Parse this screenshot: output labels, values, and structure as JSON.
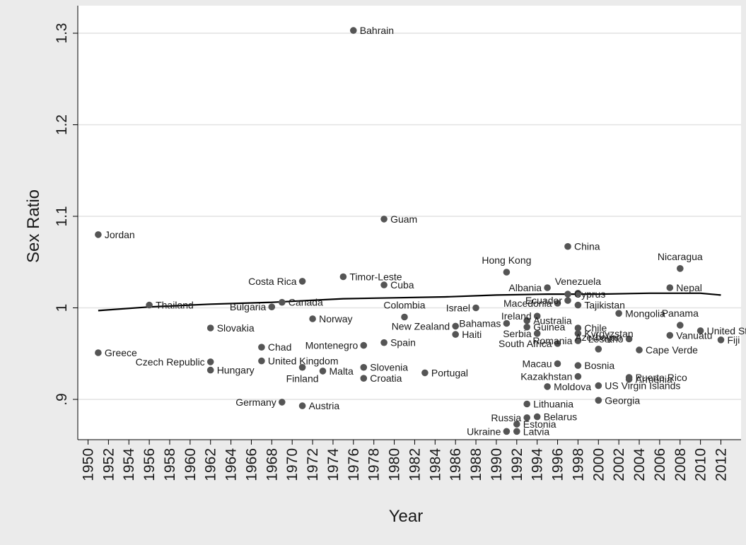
{
  "chart_data": {
    "type": "scatter",
    "title": "",
    "xlabel": "Year",
    "ylabel": "Sex Ratio",
    "xlim": [
      1949.5,
      2012.5
    ],
    "ylim": [
      0.85,
      1.31
    ],
    "x_ticks": [
      1950,
      1952,
      1954,
      1956,
      1958,
      1960,
      1962,
      1964,
      1966,
      1968,
      1970,
      1972,
      1974,
      1976,
      1978,
      1980,
      1982,
      1984,
      1986,
      1988,
      1990,
      1992,
      1994,
      1996,
      1998,
      2000,
      2002,
      2004,
      2006,
      2008,
      2010,
      2012
    ],
    "y_ticks": [
      {
        "value": 0.9,
        "label": ".9"
      },
      {
        "value": 1.0,
        "label": "1"
      },
      {
        "value": 1.1,
        "label": "1.1"
      },
      {
        "value": 1.2,
        "label": "1.2"
      },
      {
        "value": 1.3,
        "label": "1.3"
      }
    ],
    "grid": true,
    "legend": "none",
    "colors": {
      "background": "#ebebeb",
      "plot": "#ffffff",
      "point": "#555555",
      "line": "#000000",
      "grid": "#e2e2e2"
    },
    "points": [
      {
        "country": "Bahrain",
        "x": 1976,
        "y": 1.303
      },
      {
        "country": "Jordan",
        "x": 1951,
        "y": 1.08
      },
      {
        "country": "Guam",
        "x": 1979,
        "y": 1.097
      },
      {
        "country": "China",
        "x": 1997,
        "y": 1.067
      },
      {
        "country": "Nicaragua",
        "x": 2008,
        "y": 1.043
      },
      {
        "country": "Hong Kong",
        "x": 1991,
        "y": 1.039
      },
      {
        "country": "Timor-Leste",
        "x": 1975,
        "y": 1.034
      },
      {
        "country": "Costa Rica",
        "x": 1971,
        "y": 1.029
      },
      {
        "country": "Cuba",
        "x": 1979,
        "y": 1.025
      },
      {
        "country": "Albania",
        "x": 1995,
        "y": 1.022
      },
      {
        "country": "Nepal",
        "x": 2007,
        "y": 1.022
      },
      {
        "country": "Venezuela",
        "x": 1998,
        "y": 1.016
      },
      {
        "country": "Cyprus",
        "x": 1997,
        "y": 1.015
      },
      {
        "country": "Ecuador",
        "x": 1997,
        "y": 1.008
      },
      {
        "country": "Canada",
        "x": 1969,
        "y": 1.006
      },
      {
        "country": "Macedonia",
        "x": 1996,
        "y": 1.005
      },
      {
        "country": "Thailand",
        "x": 1956,
        "y": 1.003
      },
      {
        "country": "Tajikistan",
        "x": 1998,
        "y": 1.003
      },
      {
        "country": "Bulgaria",
        "x": 1968,
        "y": 1.001
      },
      {
        "country": "Israel",
        "x": 1988,
        "y": 1.0
      },
      {
        "country": "Mongolia",
        "x": 2002,
        "y": 0.994
      },
      {
        "country": "Ireland",
        "x": 1994,
        "y": 0.991
      },
      {
        "country": "Colombia",
        "x": 1981,
        "y": 0.99
      },
      {
        "country": "Australia",
        "x": 1993,
        "y": 0.986
      },
      {
        "country": "Norway",
        "x": 1972,
        "y": 0.988
      },
      {
        "country": "Bahamas",
        "x": 1991,
        "y": 0.983
      },
      {
        "country": "Panama",
        "x": 2008,
        "y": 0.981
      },
      {
        "country": "Guinea",
        "x": 1993,
        "y": 0.979
      },
      {
        "country": "Slovakia",
        "x": 1962,
        "y": 0.978
      },
      {
        "country": "New Zealand",
        "x": 1986,
        "y": 0.98
      },
      {
        "country": "Chile",
        "x": 1998,
        "y": 0.978
      },
      {
        "country": "United States",
        "x": 2010,
        "y": 0.975
      },
      {
        "country": "Serbia",
        "x": 1994,
        "y": 0.972
      },
      {
        "country": "Haiti",
        "x": 1986,
        "y": 0.971
      },
      {
        "country": "Kyrgyzstan",
        "x": 1998,
        "y": 0.972
      },
      {
        "country": "Vanuatu",
        "x": 2007,
        "y": 0.97
      },
      {
        "country": "Fiji",
        "x": 2012,
        "y": 0.965
      },
      {
        "country": "Lesotho",
        "x": 2003,
        "y": 0.966
      },
      {
        "country": "Romania",
        "x": 1998,
        "y": 0.964
      },
      {
        "country": "Spain",
        "x": 1979,
        "y": 0.962
      },
      {
        "country": "Montenegro",
        "x": 1977,
        "y": 0.959
      },
      {
        "country": "Chad",
        "x": 1967,
        "y": 0.957
      },
      {
        "country": "South Africa",
        "x": 1996,
        "y": 0.961
      },
      {
        "country": "Cape Verde",
        "x": 2004,
        "y": 0.954
      },
      {
        "country": "Greece",
        "x": 1951,
        "y": 0.951
      },
      {
        "country": "Azerbaijan",
        "x": 2000,
        "y": 0.955
      },
      {
        "country": "United Kingdom",
        "x": 1967,
        "y": 0.942
      },
      {
        "country": "Czech Republic",
        "x": 1962,
        "y": 0.941
      },
      {
        "country": "Macau",
        "x": 1996,
        "y": 0.939
      },
      {
        "country": "Bosnia",
        "x": 1998,
        "y": 0.937
      },
      {
        "country": "Slovenia",
        "x": 1977,
        "y": 0.935
      },
      {
        "country": "Finland",
        "x": 1971,
        "y": 0.935
      },
      {
        "country": "Hungary",
        "x": 1962,
        "y": 0.932
      },
      {
        "country": "Malta",
        "x": 1973,
        "y": 0.931
      },
      {
        "country": "Portugal",
        "x": 1983,
        "y": 0.929
      },
      {
        "country": "Kazakhstan",
        "x": 1998,
        "y": 0.925
      },
      {
        "country": "Puerto Rico",
        "x": 2003,
        "y": 0.924
      },
      {
        "country": "Croatia",
        "x": 1977,
        "y": 0.923
      },
      {
        "country": "Armenia",
        "x": 2003,
        "y": 0.922
      },
      {
        "country": "US Virgin Islands",
        "x": 2000,
        "y": 0.915
      },
      {
        "country": "Moldova",
        "x": 1995,
        "y": 0.914
      },
      {
        "country": "Georgia",
        "x": 2000,
        "y": 0.899
      },
      {
        "country": "Germany",
        "x": 1969,
        "y": 0.897
      },
      {
        "country": "Lithuania",
        "x": 1993,
        "y": 0.895
      },
      {
        "country": "Austria",
        "x": 1971,
        "y": 0.893
      },
      {
        "country": "Russia",
        "x": 1993,
        "y": 0.88
      },
      {
        "country": "Belarus",
        "x": 1994,
        "y": 0.881
      },
      {
        "country": "Estonia",
        "x": 1992,
        "y": 0.873
      },
      {
        "country": "Ukraine",
        "x": 1991,
        "y": 0.865
      },
      {
        "country": "Latvia",
        "x": 1992,
        "y": 0.865
      }
    ],
    "trend_line": [
      {
        "x": 1951,
        "y": 0.997
      },
      {
        "x": 1956,
        "y": 1.001
      },
      {
        "x": 1962,
        "y": 1.004
      },
      {
        "x": 1968,
        "y": 1.006
      },
      {
        "x": 1975,
        "y": 1.01
      },
      {
        "x": 1980,
        "y": 1.011
      },
      {
        "x": 1985,
        "y": 1.012
      },
      {
        "x": 1990,
        "y": 1.014
      },
      {
        "x": 1995,
        "y": 1.015
      },
      {
        "x": 2000,
        "y": 1.015
      },
      {
        "x": 2005,
        "y": 1.016
      },
      {
        "x": 2010,
        "y": 1.016
      },
      {
        "x": 2012,
        "y": 1.014
      }
    ]
  }
}
